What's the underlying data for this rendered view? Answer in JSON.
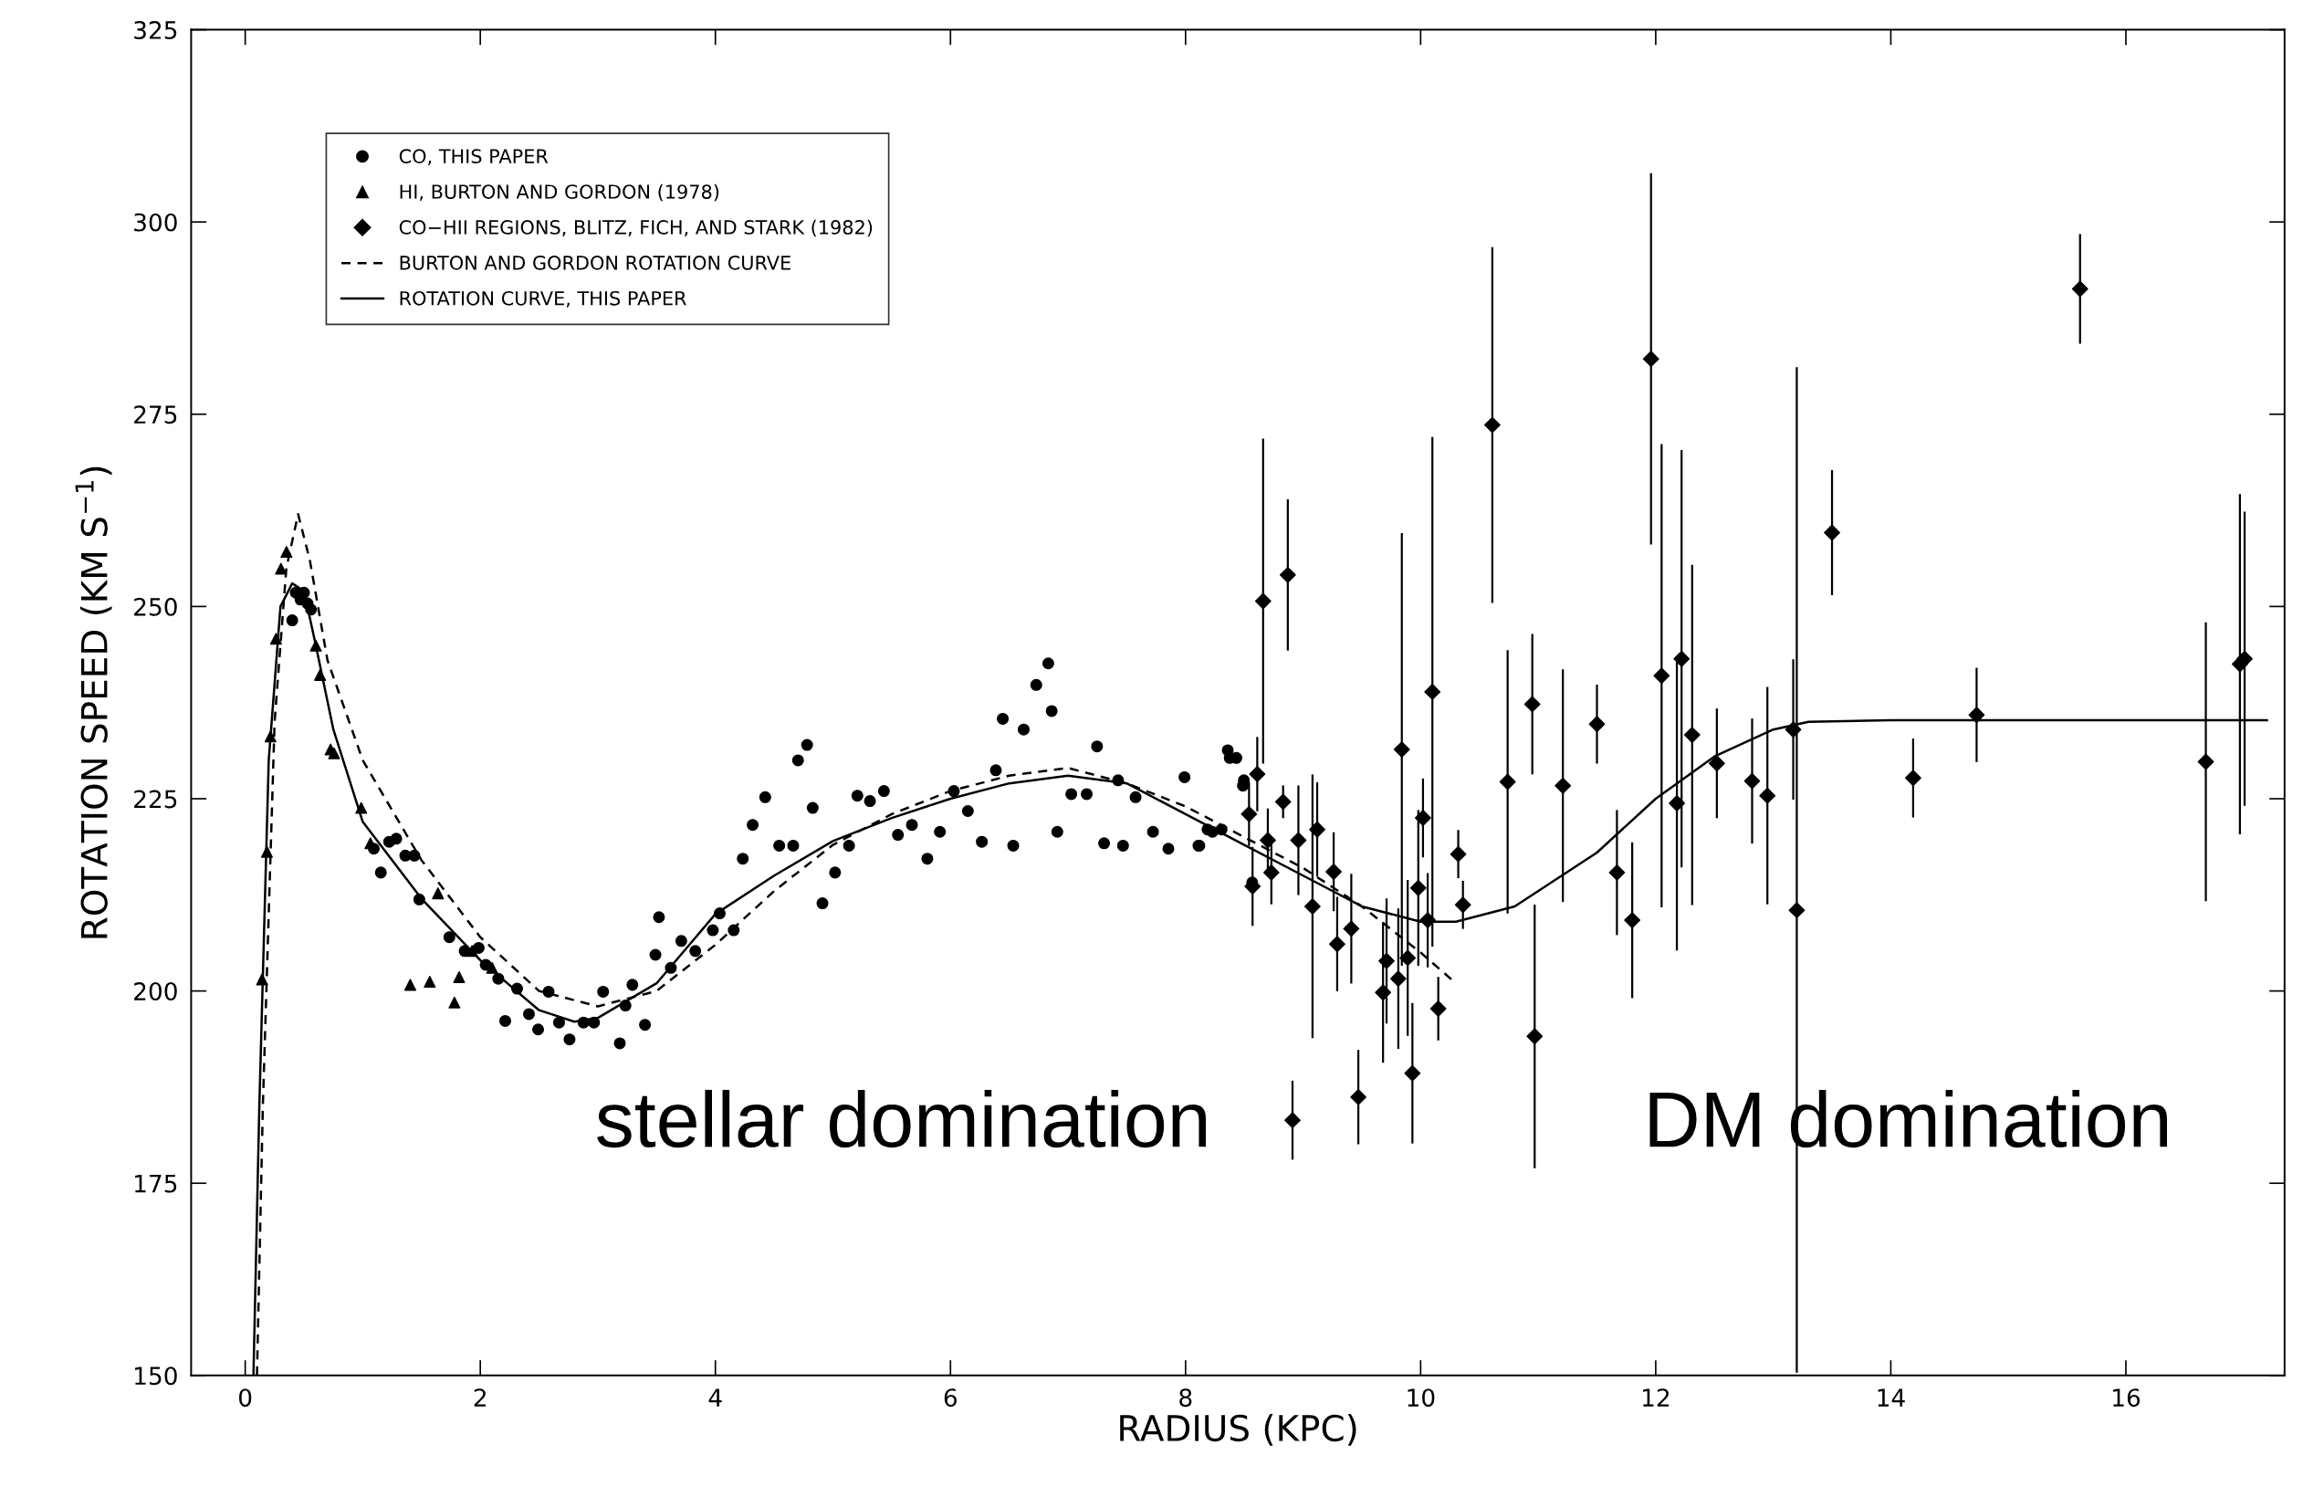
{
  "chart_data": {
    "type": "scatter",
    "xlabel": "RADIUS (KPC)",
    "ylabel": "ROTATION SPEED (KM S$^{−1}$)",
    "xlim": [
      -0.46,
      17.35
    ],
    "ylim": [
      150,
      325
    ],
    "xticks": [
      0,
      2,
      4,
      6,
      8,
      10,
      12,
      14,
      16
    ],
    "yticks": [
      150,
      175,
      200,
      225,
      250,
      275,
      300,
      325
    ],
    "grid": false,
    "legend": "top left",
    "annotations": [
      "stellar domination",
      "DM domination"
    ],
    "series": [
      {
        "name": "CO, THIS PAPER",
        "type": "scatter",
        "marker": "circle",
        "color": "#000000",
        "x": [
          0.4,
          0.43,
          0.47,
          0.5,
          0.53,
          0.56,
          1.094,
          1.154,
          1.225,
          1.285,
          1.362,
          1.439,
          1.481,
          1.737,
          1.867,
          1.986,
          2.046,
          2.153,
          2.212,
          2.313,
          2.414,
          2.492,
          2.581,
          2.67,
          2.759,
          2.878,
          2.967,
          3.045,
          3.187,
          3.235,
          3.294,
          3.401,
          3.49,
          3.52,
          3.621,
          3.71,
          3.829,
          3.978,
          4.037,
          4.156,
          4.233,
          4.317,
          4.424,
          4.543,
          4.662,
          4.703,
          4.78,
          4.828,
          4.911,
          5.018,
          5.137,
          5.208,
          5.315,
          5.434,
          5.553,
          5.672,
          5.803,
          5.91,
          6.029,
          6.148,
          6.267,
          6.386,
          6.445,
          6.534,
          6.623,
          6.73,
          6.832,
          6.861,
          6.909,
          7.028,
          7.159,
          7.247,
          7.307,
          7.426,
          7.468,
          7.575,
          7.723,
          7.854,
          7.991,
          8.11,
          8.117,
          8.187,
          8.229,
          8.306,
          8.359,
          8.376,
          8.432,
          8.488,
          8.496,
          8.567
        ],
        "values": [
          248.2,
          251.8,
          250.9,
          251.8,
          250.4,
          249.6,
          218.5,
          215.4,
          219.4,
          219.8,
          217.6,
          217.6,
          211.9,
          207.0,
          205.2,
          205.6,
          203.4,
          201.6,
          196.1,
          200.3,
          197.0,
          195.0,
          199.9,
          195.9,
          193.7,
          195.9,
          195.9,
          199.9,
          193.2,
          198.1,
          200.8,
          195.6,
          204.7,
          209.6,
          203.0,
          206.5,
          205.2,
          207.9,
          210.1,
          207.9,
          217.2,
          221.6,
          225.2,
          218.9,
          218.9,
          230.0,
          232.0,
          223.8,
          211.4,
          215.4,
          218.9,
          225.4,
          224.7,
          226.0,
          220.3,
          221.6,
          217.2,
          220.7,
          226.0,
          223.4,
          219.4,
          228.7,
          235.4,
          218.9,
          234.0,
          239.8,
          242.6,
          236.4,
          220.7,
          225.6,
          225.6,
          231.8,
          219.2,
          227.4,
          218.9,
          225.2,
          220.7,
          218.5,
          227.8,
          218.9,
          218.9,
          221.0,
          220.7,
          221.0,
          231.3,
          230.3,
          230.3,
          226.7,
          227.4,
          214.1
        ]
      },
      {
        "name": "HI, BURTON AND GORDON (1978)",
        "type": "scatter",
        "marker": "triangle",
        "color": "#000000",
        "x": [
          0.143,
          0.185,
          0.215,
          0.262,
          0.304,
          0.351,
          0.601,
          0.637,
          0.726,
          0.756,
          0.987,
          1.065,
          1.404,
          1.57,
          1.64,
          1.78,
          1.82,
          1.93,
          2.1
        ],
        "values": [
          201.5,
          218.1,
          233.1,
          245.8,
          254.9,
          257.1,
          244.9,
          241.1,
          231.4,
          230.9,
          223.8,
          219.2,
          200.8,
          201.2,
          212.7,
          198.5,
          201.8,
          205.2,
          203.0
        ]
      },
      {
        "name": "CO−HII REGIONS, BLITZ, FICH, AND STARK (1982)",
        "type": "scatter",
        "marker": "diamond",
        "color": "#000000",
        "x": [
          8.54,
          8.57,
          8.61,
          8.66,
          8.7,
          8.73,
          8.83,
          8.87,
          8.91,
          8.96,
          9.08,
          9.12,
          9.26,
          9.29,
          9.41,
          9.47,
          9.68,
          9.71,
          9.81,
          9.84,
          9.89,
          9.93,
          9.98,
          10.02,
          10.06,
          10.1,
          10.15,
          10.32,
          10.36,
          10.61,
          10.74,
          10.95,
          10.97,
          11.21,
          11.5,
          11.67,
          11.8,
          11.96,
          12.05,
          12.18,
          12.22,
          12.31,
          12.52,
          12.82,
          12.95,
          13.17,
          13.2,
          13.5,
          14.19,
          14.73,
          15.61,
          16.68,
          16.97,
          17.01
        ],
        "values": [
          223.0,
          213.6,
          228.2,
          250.7,
          219.6,
          215.4,
          224.6,
          254.1,
          183.2,
          219.6,
          211.0,
          221.0,
          215.5,
          206.1,
          208.1,
          186.2,
          199.8,
          203.9,
          201.6,
          231.4,
          204.3,
          189.3,
          213.4,
          222.5,
          209.2,
          238.9,
          197.7,
          217.8,
          211.2,
          273.6,
          227.2,
          237.3,
          194.1,
          226.7,
          234.7,
          215.4,
          209.2,
          282.2,
          241.0,
          224.4,
          243.2,
          233.3,
          229.6,
          227.3,
          225.4,
          234.0,
          210.5,
          259.6,
          227.7,
          235.9,
          291.3,
          229.8,
          242.5,
          243.2
        ],
        "errors": [
          4,
          5,
          4.7,
          21,
          4,
          4,
          2,
          9.7,
          5,
          7,
          17,
          6,
          5,
          6,
          7,
          6,
          9,
          8,
          9,
          28,
          10,
          9,
          10,
          5,
          6,
          33,
          4,
          3,
          3,
          23,
          17,
          9,
          17,
          15,
          5,
          8,
          10,
          24,
          30,
          19,
          27,
          22,
          7,
          8,
          14,
          9,
          [
            150.5,
            281
          ],
          8,
          5,
          6,
          7,
          18,
          22,
          19
        ]
      },
      {
        "name": "BURTON AND GORDON ROTATION CURVE",
        "type": "line",
        "line_style": "dashed",
        "marker": "none",
        "color": "#000000",
        "x": [
          0.1,
          0.15,
          0.25,
          0.35,
          0.45,
          0.55,
          0.7,
          1.0,
          1.5,
          2.0,
          2.5,
          3.0,
          3.5,
          4.0,
          4.5,
          5.0,
          5.5,
          6.0,
          6.5,
          7.0,
          7.5,
          8.0,
          8.5,
          9.0,
          9.5,
          10.0,
          10.3
        ],
        "values": [
          150,
          185,
          235,
          255,
          262,
          256,
          243,
          230,
          217,
          207,
          200,
          198,
          200,
          206,
          213,
          219,
          223,
          226,
          228,
          229,
          227,
          224,
          220,
          216,
          211,
          205,
          201
        ]
      },
      {
        "name": "ROTATION CURVE, THIS PAPER",
        "type": "line",
        "line_style": "solid",
        "marker": "none",
        "color": "#000000",
        "x": [
          0.07,
          0.12,
          0.2,
          0.3,
          0.4,
          0.5,
          0.6,
          0.75,
          1.0,
          1.5,
          2.0,
          2.5,
          2.8,
          3.0,
          3.5,
          4.0,
          4.5,
          5.0,
          5.5,
          6.0,
          6.5,
          7.0,
          7.5,
          8.0,
          8.5,
          9.0,
          9.5,
          10.0,
          10.3,
          10.8,
          11.5,
          12.0,
          12.5,
          13.0,
          13.3,
          14.0,
          17.2
        ],
        "values": [
          150,
          185,
          230,
          250,
          253,
          252,
          245,
          234,
          222,
          212,
          204,
          197.5,
          196,
          196.5,
          201,
          210,
          215,
          219.5,
          222.5,
          225,
          227,
          228,
          227,
          223,
          219,
          215,
          211,
          209,
          209,
          211,
          218,
          225,
          230.5,
          234,
          235,
          235.2,
          235.2
        ]
      }
    ]
  }
}
